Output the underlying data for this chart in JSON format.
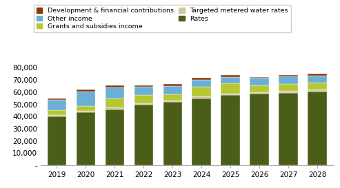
{
  "years": [
    "2019",
    "2020",
    "2021",
    "2022",
    "2023",
    "2024",
    "2025",
    "2026",
    "2027",
    "2028"
  ],
  "rates": [
    40000,
    43500,
    46000,
    49500,
    52000,
    55000,
    57500,
    58500,
    59500,
    60500
  ],
  "targeted_metered_water_rates": [
    1200,
    1200,
    1200,
    1200,
    1200,
    1500,
    1500,
    1500,
    1500,
    1500
  ],
  "grants_and_subsidies_income": [
    3800,
    4000,
    7500,
    7000,
    5000,
    8000,
    8000,
    5500,
    5500,
    6000
  ],
  "other_income": [
    8500,
    11500,
    9000,
    6500,
    6500,
    5500,
    5500,
    6000,
    6500,
    5500
  ],
  "development_financial_contributions": [
    1500,
    2000,
    2000,
    1500,
    2000,
    1500,
    1500,
    1000,
    1000,
    1500
  ],
  "colors": {
    "rates": "#4a5e1a",
    "targeted_metered_water_rates": "#d0c8a0",
    "grants_and_subsidies_income": "#b5c832",
    "other_income": "#6baed6",
    "development_financial_contributions": "#8B3A0A"
  },
  "ylim": [
    0,
    80000
  ],
  "yticks": [
    0,
    10000,
    20000,
    30000,
    40000,
    50000,
    60000,
    70000,
    80000
  ],
  "ytick_labels": [
    "-",
    "10,000",
    "20,000",
    "30,000",
    "40,000",
    "50,000",
    "60,000",
    "70,000",
    "80,000"
  ],
  "background_color": "#ffffff",
  "bar_edge_color": "#ffffff"
}
